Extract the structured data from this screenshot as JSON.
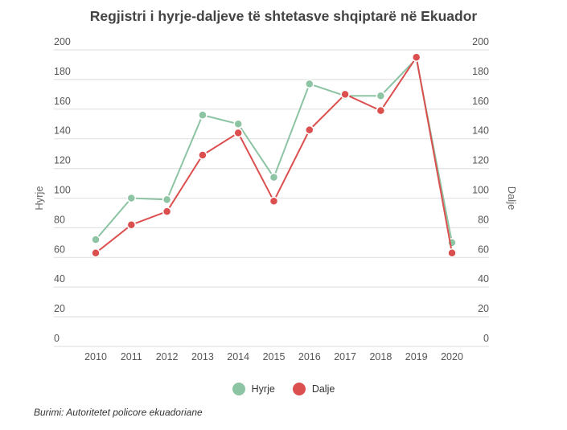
{
  "chart_data": {
    "type": "line",
    "title": "Regjistri i hyrje-daljeve të shtetasve shqiptarë në Ekuador",
    "ylabel_left": "Hyrje",
    "ylabel_right": "Dalje",
    "ylim": [
      0,
      200
    ],
    "yticks": [
      "0",
      "20",
      "40",
      "60",
      "80",
      "100",
      "120",
      "140",
      "160",
      "180",
      "200"
    ],
    "categories": [
      "2010",
      "2011",
      "2012",
      "2013",
      "2014",
      "2015",
      "2016",
      "2017",
      "2018",
      "2019",
      "2020"
    ],
    "grid": true,
    "legend_position": "bottom",
    "series": [
      {
        "name": "Hyrje",
        "color": "#8cc4a4",
        "values": [
          72,
          100,
          99,
          156,
          150,
          114,
          177,
          169,
          169,
          194,
          70
        ]
      },
      {
        "name": "Dalje",
        "color": "#dc4f4f",
        "values": [
          63,
          82,
          91,
          129,
          144,
          98,
          146,
          170,
          159,
          195,
          63
        ]
      }
    ]
  },
  "source": "Burimi: Autoritetet policore ekuadoriane"
}
